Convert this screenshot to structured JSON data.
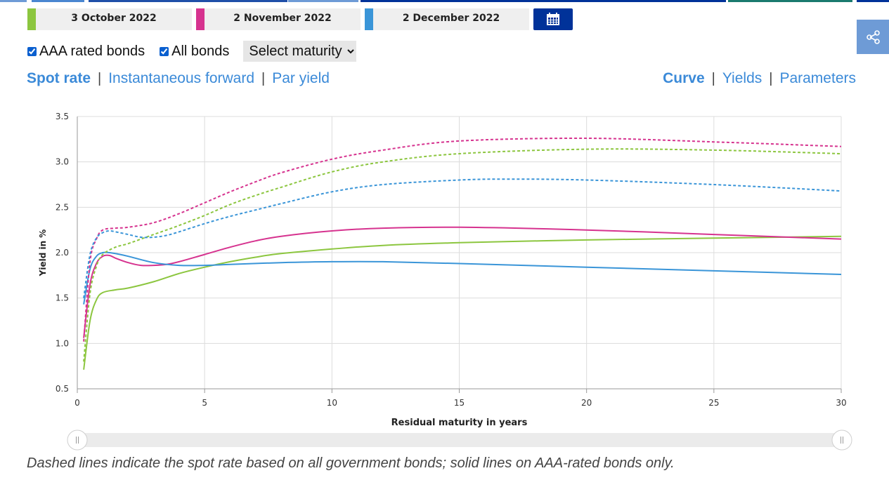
{
  "colors": {
    "green": "#8cc63f",
    "magenta": "#d6338f",
    "blue": "#3a95d8",
    "navy": "#003299",
    "link": "#3b8ad8"
  },
  "dates": [
    {
      "label": "3 October 2022",
      "color": "#8cc63f"
    },
    {
      "label": "2 November 2022",
      "color": "#d6338f"
    },
    {
      "label": "2 December 2022",
      "color": "#3a95d8"
    }
  ],
  "calendar_icon": "calendar-icon",
  "share_icon": "share-icon",
  "filters": {
    "aaa_label": "AAA rated bonds",
    "aaa_checked": true,
    "all_label": "All bonds",
    "all_checked": true,
    "maturity_select": "Select maturity"
  },
  "rate_tabs": [
    "Spot rate",
    "Instantaneous forward",
    "Par yield"
  ],
  "view_tabs": [
    "Curve",
    "Yields",
    "Parameters"
  ],
  "note": "Dashed lines indicate the spot rate based on all government bonds; solid lines on AAA-rated bonds only.",
  "chart_data": {
    "type": "line",
    "xlabel": "Residual maturity in years",
    "ylabel": "Yield in %",
    "xlim": [
      0,
      30
    ],
    "ylim": [
      0.5,
      3.5
    ],
    "xticks": [
      0,
      5,
      10,
      15,
      20,
      25,
      30
    ],
    "yticks": [
      "0.5",
      "1.0",
      "1.5",
      "2.0",
      "2.5",
      "3.0",
      "3.5"
    ],
    "grid": true,
    "series": [
      {
        "color": "#8cc63f",
        "style": "solid",
        "x": [
          0.25,
          0.5,
          0.75,
          1,
          1.5,
          2,
          3,
          4,
          5,
          6,
          7,
          8,
          10,
          12,
          15,
          20,
          25,
          30
        ],
        "y": [
          0.71,
          1.25,
          1.48,
          1.56,
          1.59,
          1.61,
          1.68,
          1.77,
          1.84,
          1.9,
          1.95,
          1.99,
          2.04,
          2.08,
          2.11,
          2.14,
          2.16,
          2.18
        ]
      },
      {
        "color": "#d6338f",
        "style": "solid",
        "x": [
          0.25,
          0.5,
          0.75,
          1,
          1.25,
          1.5,
          2,
          2.5,
          3,
          3.5,
          4,
          5,
          6,
          7,
          8,
          10,
          12,
          15,
          20,
          25,
          30
        ],
        "y": [
          1.06,
          1.65,
          1.88,
          1.96,
          1.97,
          1.94,
          1.89,
          1.86,
          1.86,
          1.87,
          1.9,
          1.98,
          2.06,
          2.13,
          2.18,
          2.24,
          2.27,
          2.28,
          2.25,
          2.2,
          2.15
        ]
      },
      {
        "color": "#3a95d8",
        "style": "solid",
        "x": [
          0.25,
          0.5,
          0.75,
          1,
          1.25,
          1.5,
          2,
          3,
          4,
          5,
          6,
          8,
          10,
          12,
          15,
          20,
          25,
          30
        ],
        "y": [
          1.43,
          1.82,
          1.96,
          2.0,
          2.0,
          1.99,
          1.96,
          1.89,
          1.86,
          1.86,
          1.87,
          1.89,
          1.9,
          1.9,
          1.88,
          1.84,
          1.8,
          1.76
        ]
      },
      {
        "color": "#8cc63f",
        "style": "dashed",
        "x": [
          0.25,
          0.5,
          0.75,
          1,
          1.5,
          2,
          3,
          4,
          5,
          6,
          7,
          8,
          10,
          12,
          15,
          20,
          25,
          30
        ],
        "y": [
          0.8,
          1.55,
          1.85,
          1.98,
          2.06,
          2.1,
          2.2,
          2.3,
          2.41,
          2.53,
          2.63,
          2.72,
          2.89,
          3.0,
          3.09,
          3.14,
          3.13,
          3.09
        ]
      },
      {
        "color": "#d6338f",
        "style": "dashed",
        "x": [
          0.25,
          0.5,
          0.75,
          1,
          1.5,
          2,
          3,
          4,
          5,
          6,
          7,
          8,
          10,
          12,
          15,
          20,
          25,
          30
        ],
        "y": [
          1.02,
          1.9,
          2.15,
          2.25,
          2.27,
          2.28,
          2.33,
          2.43,
          2.55,
          2.67,
          2.78,
          2.88,
          3.03,
          3.13,
          3.23,
          3.26,
          3.22,
          3.17
        ]
      },
      {
        "color": "#3a95d8",
        "style": "dashed",
        "x": [
          0.25,
          0.5,
          0.75,
          1,
          1.25,
          1.5,
          2,
          2.5,
          3,
          3.5,
          4,
          5,
          6,
          7,
          8,
          10,
          12,
          15,
          17,
          20,
          25,
          30
        ],
        "y": [
          1.5,
          1.98,
          2.16,
          2.22,
          2.24,
          2.23,
          2.2,
          2.17,
          2.17,
          2.19,
          2.23,
          2.32,
          2.4,
          2.47,
          2.54,
          2.67,
          2.75,
          2.8,
          2.81,
          2.8,
          2.75,
          2.68
        ]
      }
    ],
    "range_slider": {
      "from": 0,
      "to": 30
    }
  }
}
